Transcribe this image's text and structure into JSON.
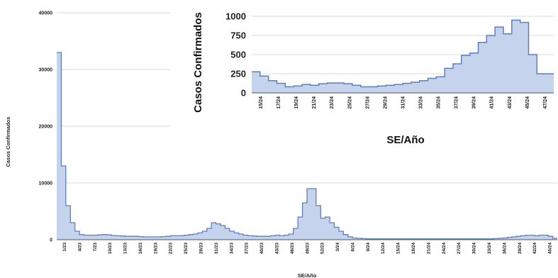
{
  "chart_data": [
    {
      "type": "area",
      "ylabel": "Casos Confirmados",
      "xlabel": "SE/Año",
      "ylim": [
        0,
        40000
      ],
      "yticks": [
        0,
        10000,
        20000,
        30000,
        40000
      ],
      "grid": "horizontal",
      "color": "#5b7fc0",
      "fill": "#c5d4ec",
      "xtick_labels": [
        "1/23",
        "4/23",
        "7/23",
        "10/23",
        "13/23",
        "16/23",
        "19/23",
        "22/23",
        "25/23",
        "28/23",
        "31/23",
        "34/23",
        "37/23",
        "40/23",
        "43/23",
        "46/23",
        "49/23",
        "52/23",
        "3/24",
        "6/24",
        "9/24",
        "12/24",
        "15/24",
        "18/24",
        "21/24",
        "24/24",
        "27/24",
        "30/24",
        "33/24",
        "36/24",
        "39/24",
        "42/24",
        "45/24"
      ],
      "values": [
        33000,
        13000,
        6000,
        3000,
        1500,
        900,
        800,
        800,
        800,
        850,
        900,
        850,
        750,
        700,
        650,
        600,
        600,
        600,
        550,
        500,
        500,
        500,
        500,
        550,
        600,
        700,
        700,
        700,
        800,
        900,
        1000,
        1200,
        1500,
        2000,
        3000,
        2800,
        2500,
        2000,
        1500,
        1200,
        1000,
        800,
        700,
        650,
        600,
        600,
        600,
        700,
        800,
        700,
        800,
        1000,
        2000,
        4000,
        6500,
        9000,
        9000,
        6000,
        3800,
        4000,
        3000,
        2200,
        1500,
        900,
        500,
        300,
        250,
        200,
        150,
        150,
        150,
        150,
        150,
        150,
        150,
        150,
        150,
        150,
        150,
        150,
        150,
        150,
        150,
        150,
        150,
        150,
        150,
        150,
        150,
        150,
        150,
        150,
        150,
        150,
        150,
        150,
        200,
        250,
        300,
        400,
        500,
        600,
        700,
        800,
        800,
        700,
        800,
        800,
        600,
        250
      ]
    },
    {
      "type": "area",
      "ylabel": "Casos Confirmados",
      "xlabel": "SE/Año",
      "ylim": [
        0,
        1000
      ],
      "yticks": [
        0,
        250,
        500,
        750,
        1000
      ],
      "grid": "horizontal",
      "color": "#5b7fc0",
      "fill": "#c5d4ec",
      "xtick_labels": [
        "15/24",
        "17/24",
        "19/24",
        "21/24",
        "23/24",
        "25/24",
        "27/24",
        "29/24",
        "31/24",
        "33/24",
        "35/24",
        "37/24",
        "39/24",
        "41/24",
        "43/24",
        "45/24",
        "47/24"
      ],
      "values": [
        275,
        220,
        160,
        125,
        80,
        90,
        110,
        100,
        120,
        130,
        130,
        120,
        100,
        80,
        80,
        90,
        100,
        110,
        125,
        140,
        160,
        190,
        210,
        320,
        380,
        490,
        520,
        660,
        750,
        860,
        770,
        950,
        920,
        500,
        250,
        250
      ]
    }
  ]
}
